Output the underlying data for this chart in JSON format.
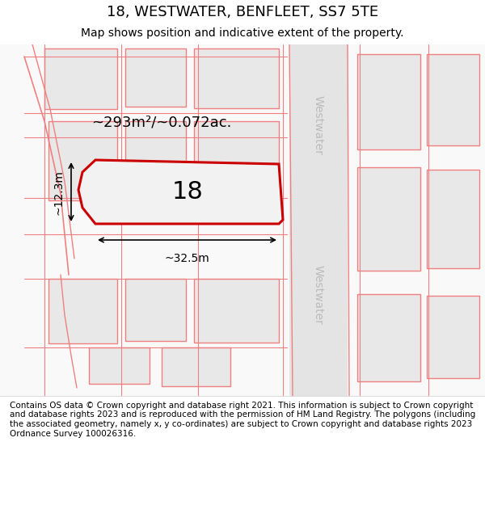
{
  "title": "18, WESTWATER, BENFLEET, SS7 5TE",
  "subtitle": "Map shows position and indicative extent of the property.",
  "footer": "Contains OS data © Crown copyright and database right 2021. This information is subject to Crown copyright and database rights 2023 and is reproduced with the permission of HM Land Registry. The polygons (including the associated geometry, namely x, y co-ordinates) are subject to Crown copyright and database rights 2023 Ordnance Survey 100026316.",
  "area_label": "~293m²/~0.072ac.",
  "width_label": "~32.5m",
  "height_label": "~12.3m",
  "number_label": "18",
  "street_label_top": "Westwater",
  "street_label_bottom": "Westwater",
  "bg_color": "#ffffff",
  "plot_stroke": "#cc0000",
  "neighbor_stroke": "#f08080"
}
